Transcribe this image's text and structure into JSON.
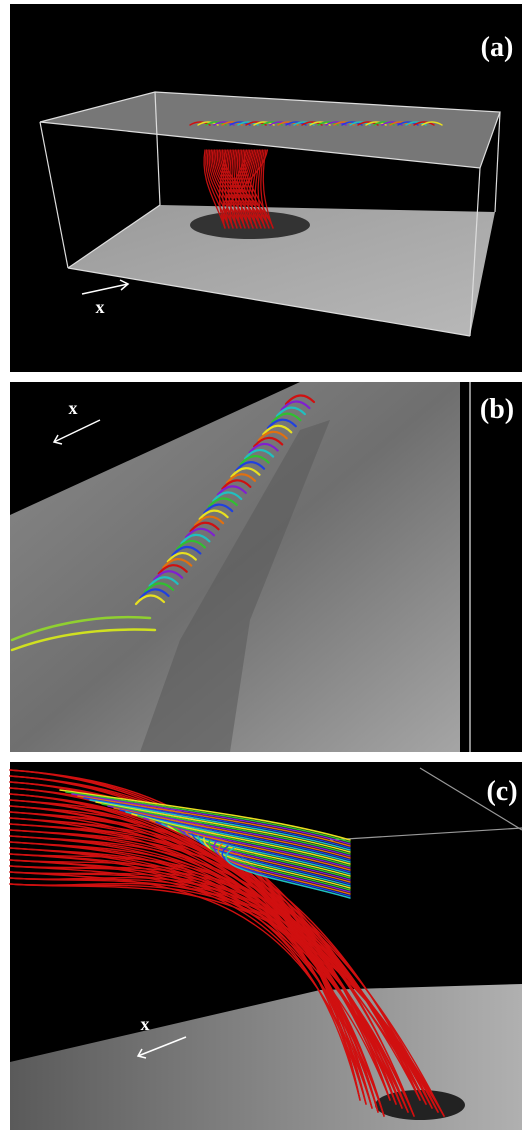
{
  "panels": [
    {
      "label": "(a)",
      "axis_label": "x"
    },
    {
      "label": "(b)",
      "axis_label": "x"
    },
    {
      "label": "(c)",
      "axis_label": "x"
    }
  ]
}
